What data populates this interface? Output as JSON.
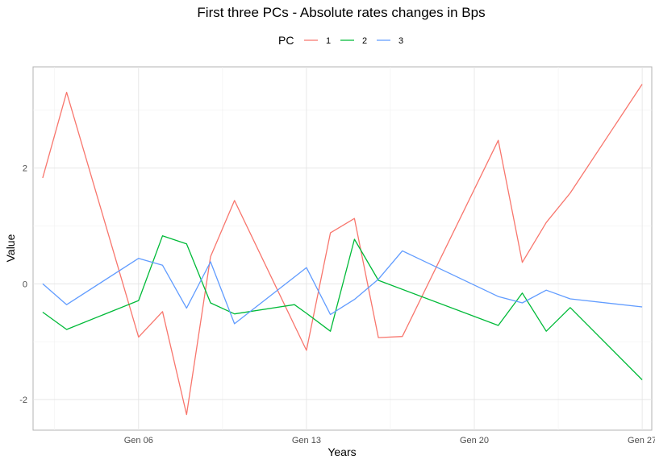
{
  "chart_data": {
    "type": "line",
    "title": "First three PCs - Absolute rates changes in Bps",
    "xlabel": "Years",
    "ylabel": "Value",
    "legend": {
      "title": "PC",
      "placement": "top"
    },
    "grid": true,
    "x_ticks": [
      {
        "day": 6,
        "label": "Gen 06"
      },
      {
        "day": 13,
        "label": "Gen 13"
      },
      {
        "day": 20,
        "label": "Gen 20"
      },
      {
        "day": 27,
        "label": "Gen 27"
      }
    ],
    "y_ticks": [
      {
        "value": -2,
        "label": "-2"
      },
      {
        "value": 0,
        "label": "0"
      },
      {
        "value": 2,
        "label": "2"
      }
    ],
    "xlim": [
      1.6,
      27.4
    ],
    "ylim": [
      -2.53,
      3.75
    ],
    "x": [
      2,
      3,
      5,
      6,
      7,
      8,
      9,
      10,
      12,
      13,
      14,
      15,
      16,
      17,
      20,
      21,
      22,
      23,
      24,
      27
    ],
    "series": [
      {
        "name": "1",
        "color": "#F8766D",
        "values": [
          1.83,
          3.31,
          -0.92,
          -0.48,
          -2.26,
          0.47,
          1.44,
          -1.15,
          0.88,
          1.13,
          -0.93,
          -0.91,
          2.48,
          0.37,
          1.06,
          1.57,
          3.45,
          null,
          null,
          null
        ]
      },
      {
        "name": "2",
        "color": "#00BA38",
        "values": [
          -0.49,
          -0.79,
          -0.29,
          0.83,
          0.69,
          -0.33,
          -0.52,
          -0.36,
          -0.51,
          -0.82,
          0.77,
          0.06,
          -0.72,
          -0.16,
          -0.82,
          -0.41,
          -1.66,
          null,
          null,
          null
        ]
      },
      {
        "name": "3",
        "color": "#619CFF",
        "values": [
          0.0,
          -0.36,
          0.44,
          0.32,
          -0.42,
          0.38,
          -0.69,
          0.28,
          -0.53,
          -0.27,
          0.08,
          0.57,
          -0.22,
          -0.33,
          -0.11,
          -0.26,
          -0.4,
          null,
          null,
          null
        ]
      }
    ],
    "series_x": [
      [
        2,
        3,
        6,
        7,
        8,
        9,
        10,
        13,
        14,
        15,
        16,
        17,
        21,
        22,
        23,
        24,
        27
      ],
      [
        2,
        3,
        6,
        7,
        8,
        9,
        10,
        12.5,
        13,
        14,
        15,
        16,
        21,
        22,
        23,
        24,
        27
      ],
      [
        2,
        3,
        6,
        7,
        8,
        9,
        10,
        13,
        14,
        15,
        16,
        17,
        21,
        22,
        23,
        24,
        27
      ]
    ]
  }
}
